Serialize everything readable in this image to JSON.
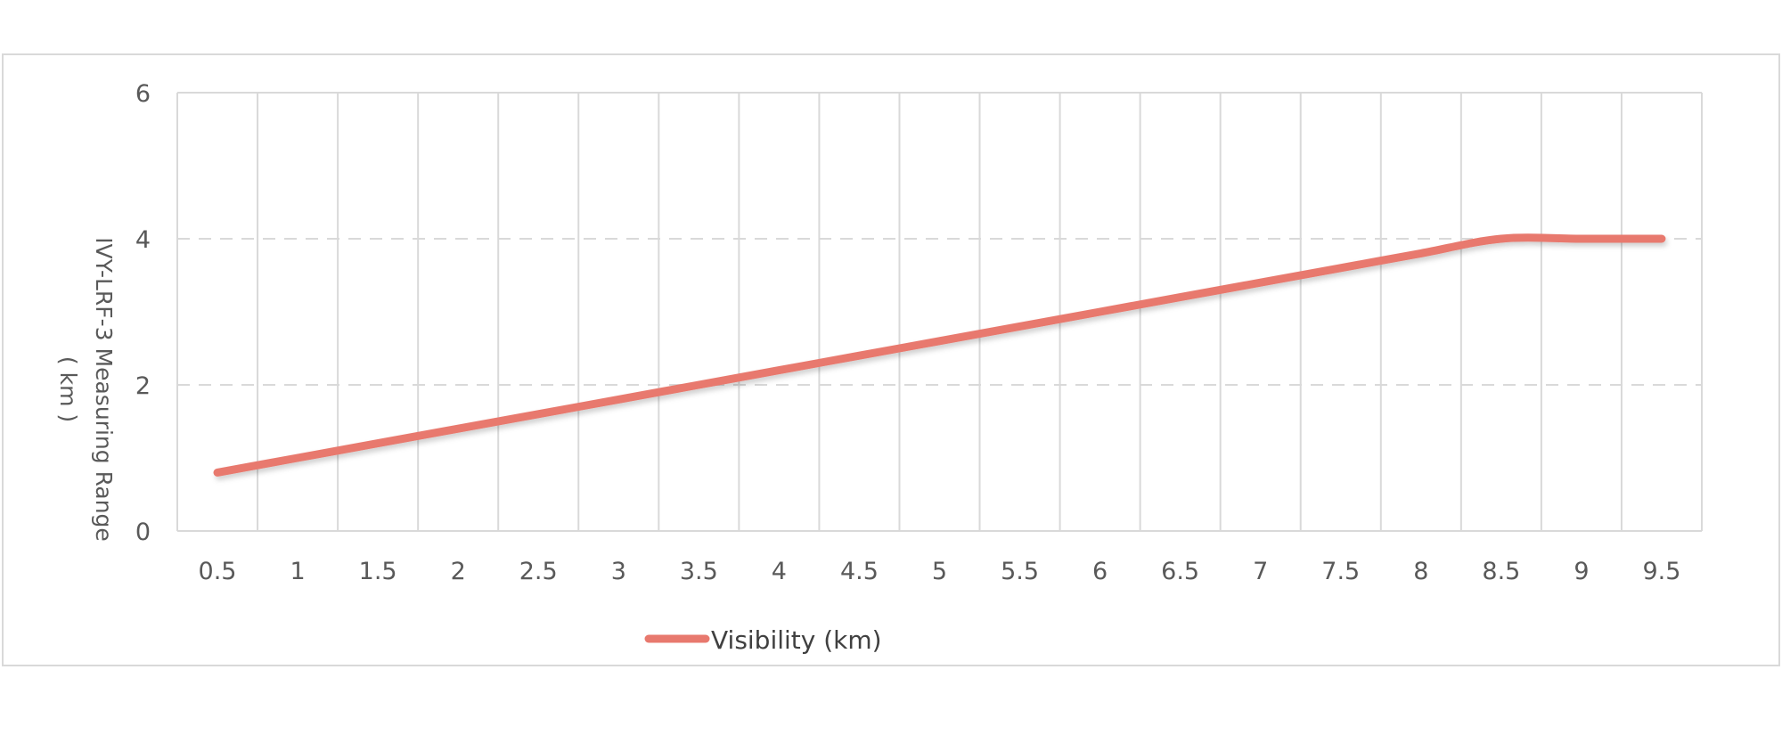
{
  "chart_data": {
    "type": "line",
    "title": "",
    "xlabel": "",
    "ylabel_line1": "IVY-LRF-3  Measuring Range",
    "ylabel_line2": "( km )",
    "x": [
      0.5,
      1,
      1.5,
      2,
      2.5,
      3,
      3.5,
      4,
      4.5,
      5,
      5.5,
      6,
      6.5,
      7,
      7.5,
      8,
      8.5,
      9,
      9.5
    ],
    "x_tick_labels": [
      "0.5",
      "1",
      "1.5",
      "2",
      "2.5",
      "3",
      "3.5",
      "4",
      "4.5",
      "5",
      "5.5",
      "6",
      "6.5",
      "7",
      "7.5",
      "8",
      "8.5",
      "9",
      "9.5"
    ],
    "series": [
      {
        "name": "Visibility (km)",
        "values": [
          0.8,
          1.0,
          1.2,
          1.4,
          1.6,
          1.8,
          2.0,
          2.2,
          2.4,
          2.6,
          2.8,
          3.0,
          3.2,
          3.4,
          3.6,
          3.8,
          4.0,
          4.0,
          4.0
        ],
        "color": "#e8796e"
      }
    ],
    "ylim": [
      0,
      6
    ],
    "y_ticks": [
      0,
      2,
      4,
      6
    ],
    "y_tick_labels": [
      "0",
      "2",
      "4",
      "6"
    ],
    "grid": "on",
    "legend_position": "bottom"
  }
}
